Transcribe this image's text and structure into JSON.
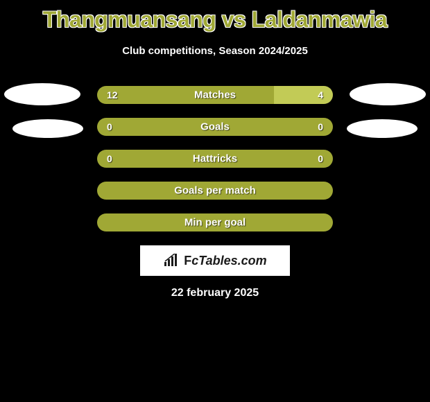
{
  "title": "Thangmuansang vs Laldanmawia",
  "subtitle": "Club competitions, Season 2024/2025",
  "date": "22 february 2025",
  "logo_text": "FcTables.com",
  "colors": {
    "background": "#000000",
    "title": "#a0a835",
    "accent": "#a0a835",
    "right_bar": "#c2cb56",
    "text": "#ffffff",
    "photo_bg": "#ffffff",
    "logo_bg": "#ffffff",
    "logo_text": "#1a1a1a"
  },
  "stat_rows": [
    {
      "label": "Matches",
      "left_val": "12",
      "right_val": "4",
      "left_pct": 75,
      "right_pct": 25,
      "left_color": "#a0a835",
      "right_color": "#c2cb56"
    },
    {
      "label": "Goals",
      "left_val": "0",
      "right_val": "0",
      "left_pct": 100,
      "right_pct": 0,
      "left_color": "#a0a835",
      "right_color": "#c2cb56"
    },
    {
      "label": "Hattricks",
      "left_val": "0",
      "right_val": "0",
      "left_pct": 100,
      "right_pct": 0,
      "left_color": "#a0a835",
      "right_color": "#c2cb56"
    },
    {
      "label": "Goals per match",
      "left_val": "",
      "right_val": "",
      "left_pct": 100,
      "right_pct": 0,
      "left_color": "#a0a835",
      "right_color": "#c2cb56"
    },
    {
      "label": "Min per goal",
      "left_val": "",
      "right_val": "",
      "left_pct": 100,
      "right_pct": 0,
      "left_color": "#a0a835",
      "right_color": "#c2cb56"
    }
  ]
}
